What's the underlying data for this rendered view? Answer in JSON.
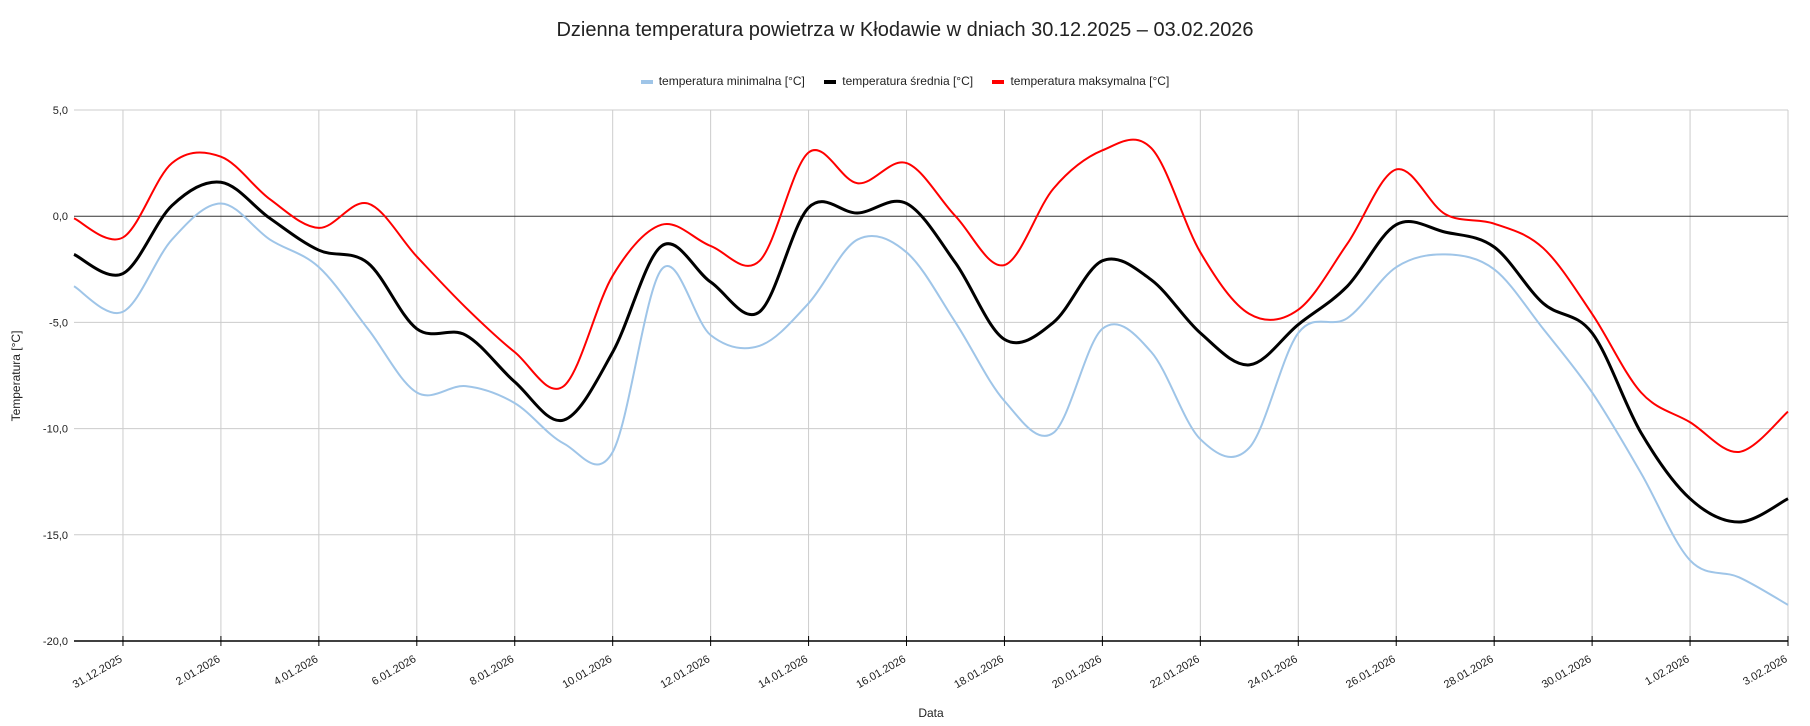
{
  "chart_data": {
    "type": "line",
    "title": "Dzienna temperatura powietrza w Kłodawie w dniach 30.12.2025 – 03.02.2026",
    "xlabel": "Data",
    "ylabel": "Temperatura [°C]",
    "ylim": [
      -20,
      5
    ],
    "y_ticks": [
      5,
      0,
      -5,
      -10,
      -15,
      -20
    ],
    "y_tick_labels": [
      "5,0",
      "0,0",
      "-5,0",
      "-10,0",
      "-15,0",
      "-20,0"
    ],
    "grid": true,
    "legend_position": "top",
    "x": [
      "30.12.2025",
      "31.12.2025",
      "1.01.2026",
      "2.01.2026",
      "3.01.2026",
      "4.01.2026",
      "5.01.2026",
      "6.01.2026",
      "7.01.2026",
      "8.01.2026",
      "9.01.2026",
      "10.01.2026",
      "11.01.2026",
      "12.01.2026",
      "13.01.2026",
      "14.01.2026",
      "15.01.2026",
      "16.01.2026",
      "17.01.2026",
      "18.01.2026",
      "19.01.2026",
      "20.01.2026",
      "21.01.2026",
      "22.01.2026",
      "23.01.2026",
      "24.01.2026",
      "25.01.2026",
      "26.01.2026",
      "27.01.2026",
      "28.01.2026",
      "29.01.2026",
      "30.01.2026",
      "31.01.2026",
      "1.02.2026",
      "2.02.2026",
      "3.02.2026"
    ],
    "x_tick_labels": [
      "31.12.2025",
      "2.01.2026",
      "4.01.2026",
      "6.01.2026",
      "8.01.2026",
      "10.01.2026",
      "12.01.2026",
      "14.01.2026",
      "16.01.2026",
      "18.01.2026",
      "20.01.2026",
      "22.01.2026",
      "24.01.2026",
      "26.01.2026",
      "28.01.2026",
      "30.01.2026",
      "1.02.2026",
      "3.02.2026"
    ],
    "series": [
      {
        "name": "temperatura minimalna [°C]",
        "color": "#9fc5e8",
        "values": [
          -3.3,
          -4.5,
          -1.1,
          0.6,
          -1.1,
          -2.4,
          -5.3,
          -8.3,
          -8.0,
          -8.8,
          -10.7,
          -11.1,
          -2.5,
          -5.6,
          -6.1,
          -4.1,
          -1.1,
          -1.7,
          -5.0,
          -8.7,
          -10.2,
          -5.3,
          -6.4,
          -10.5,
          -10.9,
          -5.5,
          -4.8,
          -2.4,
          -1.8,
          -2.5,
          -5.3,
          -8.3,
          -12.1,
          -16.2,
          -17.0,
          -18.3
        ]
      },
      {
        "name": "temperatura średnia [°C]",
        "color": "#000000",
        "values": [
          -1.8,
          -2.7,
          0.5,
          1.6,
          -0.1,
          -1.6,
          -2.2,
          -5.3,
          -5.6,
          -7.8,
          -9.6,
          -6.4,
          -1.4,
          -3.1,
          -4.5,
          0.4,
          0.15,
          0.6,
          -2.2,
          -5.8,
          -5.0,
          -2.1,
          -3.0,
          -5.5,
          -7.0,
          -5.1,
          -3.3,
          -0.4,
          -0.75,
          -1.45,
          -4.1,
          -5.5,
          -10.2,
          -13.3,
          -14.4,
          -13.3
        ]
      },
      {
        "name": "temperatura maksymalna [°C]",
        "color": "#ff0000",
        "values": [
          -0.1,
          -1.0,
          2.5,
          2.8,
          0.8,
          -0.55,
          0.6,
          -1.9,
          -4.3,
          -6.4,
          -8.0,
          -2.8,
          -0.4,
          -1.4,
          -2.1,
          3.0,
          1.55,
          2.5,
          0.0,
          -2.3,
          1.3,
          3.1,
          3.2,
          -1.7,
          -4.6,
          -4.4,
          -1.3,
          2.2,
          0.1,
          -0.35,
          -1.5,
          -4.6,
          -8.3,
          -9.7,
          -11.1,
          -9.2
        ]
      }
    ]
  }
}
